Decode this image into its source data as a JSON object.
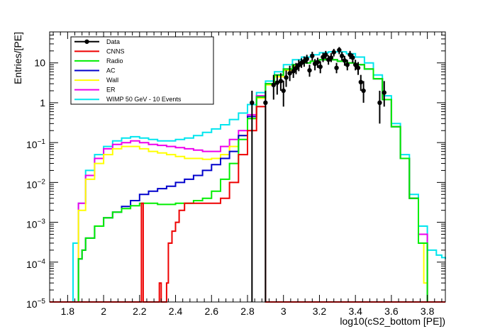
{
  "chart_data": {
    "type": "histogram",
    "xlabel": "log10(cS2_bottom [PE])",
    "ylabel": "Entries/[PE]",
    "xlim": [
      1.7,
      3.9
    ],
    "ylim": [
      1e-05,
      60
    ],
    "yscale": "log",
    "grid": false,
    "legend_position": "top-left",
    "x_ticks": [
      1.8,
      2,
      2.2,
      2.4,
      2.6,
      2.8,
      3,
      3.2,
      3.4,
      3.6,
      3.8
    ],
    "x_tick_labels": [
      "1.8",
      "2",
      "2.2",
      "2.4",
      "2.6",
      "2.8",
      "3",
      "3.2",
      "3.4",
      "3.6",
      "3.8"
    ],
    "y_ticks": [
      1e-05,
      0.0001,
      0.001,
      0.01,
      0.1,
      1,
      10
    ],
    "y_tick_labels": [
      {
        "base": "10",
        "exp": "−5"
      },
      {
        "base": "10",
        "exp": "−4"
      },
      {
        "base": "10",
        "exp": "−3"
      },
      {
        "base": "10",
        "exp": "−2"
      },
      {
        "base": "10",
        "exp": "−1"
      },
      {
        "base": "1",
        "exp": ""
      },
      {
        "base": "10",
        "exp": ""
      }
    ],
    "floor": 1e-05,
    "series": [
      {
        "name": "WIMP 50 GeV - 10 Events",
        "color": "#00e5ee",
        "points": [
          [
            1.7,
            1e-05
          ],
          [
            1.82,
            1e-05
          ],
          [
            1.83,
            0.0003
          ],
          [
            1.86,
            0.003
          ],
          [
            1.9,
            0.02
          ],
          [
            1.95,
            0.05
          ],
          [
            2.0,
            0.08
          ],
          [
            2.05,
            0.11
          ],
          [
            2.1,
            0.13
          ],
          [
            2.15,
            0.14
          ],
          [
            2.2,
            0.13
          ],
          [
            2.25,
            0.12
          ],
          [
            2.3,
            0.11
          ],
          [
            2.35,
            0.11
          ],
          [
            2.4,
            0.12
          ],
          [
            2.45,
            0.13
          ],
          [
            2.5,
            0.15
          ],
          [
            2.55,
            0.18
          ],
          [
            2.6,
            0.22
          ],
          [
            2.65,
            0.28
          ],
          [
            2.7,
            0.38
          ],
          [
            2.75,
            0.55
          ],
          [
            2.8,
            0.9
          ],
          [
            2.85,
            1.8
          ],
          [
            2.9,
            3.5
          ],
          [
            2.95,
            6
          ],
          [
            3.0,
            9
          ],
          [
            3.05,
            12
          ],
          [
            3.1,
            14
          ],
          [
            3.15,
            16
          ],
          [
            3.2,
            18
          ],
          [
            3.25,
            19
          ],
          [
            3.3,
            19
          ],
          [
            3.35,
            17
          ],
          [
            3.4,
            14
          ],
          [
            3.45,
            10
          ],
          [
            3.5,
            5
          ],
          [
            3.55,
            1.5
          ],
          [
            3.6,
            0.3
          ],
          [
            3.65,
            0.05
          ],
          [
            3.7,
            0.005
          ],
          [
            3.75,
            0.0008
          ],
          [
            3.8,
            0.0002
          ],
          [
            3.85,
            0.00015
          ],
          [
            3.88,
            0.00013
          ],
          [
            3.9,
            0.00012
          ]
        ]
      },
      {
        "name": "ER",
        "color": "#ee00ee",
        "points": [
          [
            1.83,
            1e-05
          ],
          [
            1.86,
            0.003
          ],
          [
            1.9,
            0.015
          ],
          [
            1.95,
            0.04
          ],
          [
            2.0,
            0.07
          ],
          [
            2.05,
            0.09
          ],
          [
            2.1,
            0.1
          ],
          [
            2.15,
            0.11
          ],
          [
            2.2,
            0.1
          ],
          [
            2.25,
            0.09
          ],
          [
            2.3,
            0.085
          ],
          [
            2.35,
            0.08
          ],
          [
            2.4,
            0.075
          ],
          [
            2.45,
            0.07
          ],
          [
            2.5,
            0.065
          ],
          [
            2.55,
            0.06
          ],
          [
            2.6,
            0.06
          ],
          [
            2.65,
            0.08
          ],
          [
            2.7,
            0.12
          ],
          [
            2.75,
            0.2
          ],
          [
            2.8,
            0.5
          ],
          [
            2.85,
            1.5
          ],
          [
            2.9,
            3
          ],
          [
            2.95,
            5
          ],
          [
            3.0,
            7
          ],
          [
            3.05,
            9
          ],
          [
            3.1,
            10
          ],
          [
            3.15,
            11
          ],
          [
            3.2,
            12
          ],
          [
            3.25,
            12
          ],
          [
            3.3,
            11
          ],
          [
            3.35,
            10
          ],
          [
            3.4,
            9
          ],
          [
            3.45,
            7
          ],
          [
            3.5,
            4
          ],
          [
            3.55,
            1.2
          ],
          [
            3.6,
            0.25
          ],
          [
            3.65,
            0.04
          ],
          [
            3.7,
            0.004
          ],
          [
            3.75,
            0.0005
          ],
          [
            3.8,
            1e-05
          ]
        ]
      },
      {
        "name": "Wall",
        "color": "#ffff00",
        "points": [
          [
            1.83,
            1e-05
          ],
          [
            1.86,
            0.002
          ],
          [
            1.9,
            0.012
          ],
          [
            1.95,
            0.03
          ],
          [
            2.0,
            0.05
          ],
          [
            2.05,
            0.07
          ],
          [
            2.1,
            0.08
          ],
          [
            2.15,
            0.08
          ],
          [
            2.2,
            0.07
          ],
          [
            2.25,
            0.06
          ],
          [
            2.3,
            0.055
          ],
          [
            2.35,
            0.05
          ],
          [
            2.4,
            0.045
          ],
          [
            2.45,
            0.04
          ],
          [
            2.5,
            0.04
          ],
          [
            2.55,
            0.038
          ],
          [
            2.6,
            0.04
          ],
          [
            2.65,
            0.05
          ],
          [
            2.7,
            0.08
          ],
          [
            2.75,
            0.15
          ],
          [
            2.8,
            0.4
          ],
          [
            2.85,
            1.3
          ],
          [
            2.9,
            2.8
          ],
          [
            2.95,
            4.5
          ],
          [
            3.0,
            6.5
          ],
          [
            3.05,
            8.5
          ],
          [
            3.1,
            10
          ],
          [
            3.15,
            11
          ],
          [
            3.2,
            12
          ],
          [
            3.25,
            12
          ],
          [
            3.3,
            11
          ],
          [
            3.35,
            10
          ],
          [
            3.4,
            9
          ],
          [
            3.45,
            7
          ],
          [
            3.5,
            4
          ],
          [
            3.55,
            1.2
          ],
          [
            3.6,
            0.25
          ],
          [
            3.65,
            0.04
          ],
          [
            3.7,
            0.004
          ],
          [
            3.75,
            0.0003
          ],
          [
            3.78,
            3e-05
          ],
          [
            3.8,
            1e-05
          ]
        ]
      },
      {
        "name": "AC",
        "color": "#0000cc",
        "points": [
          [
            1.84,
            1e-05
          ],
          [
            1.86,
            0.00012
          ],
          [
            1.88,
            0.0002
          ],
          [
            1.9,
            0.0004
          ],
          [
            1.95,
            0.0008
          ],
          [
            2.0,
            0.0013
          ],
          [
            2.05,
            0.0018
          ],
          [
            2.1,
            0.0025
          ],
          [
            2.15,
            0.0035
          ],
          [
            2.2,
            0.005
          ],
          [
            2.25,
            0.006
          ],
          [
            2.3,
            0.007
          ],
          [
            2.35,
            0.008
          ],
          [
            2.4,
            0.01
          ],
          [
            2.45,
            0.012
          ],
          [
            2.5,
            0.015
          ],
          [
            2.55,
            0.02
          ],
          [
            2.6,
            0.028
          ],
          [
            2.65,
            0.04
          ],
          [
            2.7,
            0.06
          ],
          [
            2.75,
            0.15
          ],
          [
            2.8,
            0.45
          ],
          [
            2.85,
            1.4
          ],
          [
            2.9,
            3
          ],
          [
            2.95,
            5
          ],
          [
            3.0,
            7
          ],
          [
            3.05,
            9
          ],
          [
            3.1,
            10
          ],
          [
            3.15,
            11
          ],
          [
            3.2,
            12
          ],
          [
            3.25,
            12
          ],
          [
            3.3,
            11
          ],
          [
            3.35,
            10
          ],
          [
            3.4,
            9
          ],
          [
            3.45,
            7
          ],
          [
            3.5,
            4
          ],
          [
            3.55,
            1.2
          ],
          [
            3.6,
            0.25
          ],
          [
            3.65,
            0.04
          ],
          [
            3.7,
            0.004
          ],
          [
            3.75,
            0.0003
          ],
          [
            3.8,
            1e-05
          ]
        ]
      },
      {
        "name": "Radio",
        "color": "#00ee00",
        "points": [
          [
            1.84,
            1e-05
          ],
          [
            1.86,
            0.00012
          ],
          [
            1.88,
            0.0002
          ],
          [
            1.9,
            0.0004
          ],
          [
            1.95,
            0.0008
          ],
          [
            2.0,
            0.0013
          ],
          [
            2.05,
            0.0018
          ],
          [
            2.1,
            0.0022
          ],
          [
            2.15,
            0.0026
          ],
          [
            2.2,
            0.003
          ],
          [
            2.25,
            0.003
          ],
          [
            2.3,
            0.0028
          ],
          [
            2.35,
            0.0028
          ],
          [
            2.4,
            0.003
          ],
          [
            2.45,
            0.003
          ],
          [
            2.5,
            0.0035
          ],
          [
            2.55,
            0.004
          ],
          [
            2.6,
            0.006
          ],
          [
            2.65,
            0.012
          ],
          [
            2.7,
            0.03
          ],
          [
            2.75,
            0.12
          ],
          [
            2.8,
            0.4
          ],
          [
            2.85,
            1.4
          ],
          [
            2.9,
            3
          ],
          [
            2.95,
            5
          ],
          [
            3.0,
            7
          ],
          [
            3.05,
            9
          ],
          [
            3.1,
            10
          ],
          [
            3.15,
            11
          ],
          [
            3.2,
            12
          ],
          [
            3.25,
            12
          ],
          [
            3.3,
            11
          ],
          [
            3.35,
            10
          ],
          [
            3.4,
            9
          ],
          [
            3.45,
            7
          ],
          [
            3.5,
            4
          ],
          [
            3.55,
            1.2
          ],
          [
            3.6,
            0.25
          ],
          [
            3.65,
            0.04
          ],
          [
            3.7,
            0.004
          ],
          [
            3.75,
            0.0003
          ],
          [
            3.8,
            1e-05
          ]
        ]
      },
      {
        "name": "CNNS",
        "color": "#ee0000",
        "points": [
          [
            1.7,
            1e-05
          ],
          [
            2.2,
            1e-05
          ],
          [
            2.21,
            0.003
          ],
          [
            2.22,
            1e-05
          ],
          [
            2.3,
            1e-05
          ],
          [
            2.31,
            3e-05
          ],
          [
            2.32,
            1e-05
          ],
          [
            2.34,
            1e-05
          ],
          [
            2.35,
            3e-05
          ],
          [
            2.36,
            0.0003
          ],
          [
            2.38,
            0.0006
          ],
          [
            2.4,
            0.001
          ],
          [
            2.42,
            0.002
          ],
          [
            2.45,
            0.003
          ],
          [
            2.5,
            0.003
          ],
          [
            2.55,
            0.003
          ],
          [
            2.6,
            0.003
          ],
          [
            2.65,
            0.004
          ],
          [
            2.7,
            0.01
          ],
          [
            2.75,
            0.05
          ],
          [
            2.8,
            0.2
          ],
          [
            2.85,
            0.8
          ],
          [
            2.9,
            1e-05
          ],
          [
            3.9,
            1e-05
          ]
        ]
      }
    ],
    "data": {
      "name": "Data",
      "color": "#000000",
      "points": [
        [
          2.825,
          1.0,
          1e-05,
          2.0
        ],
        [
          2.9,
          1.0,
          1e-05,
          2.0
        ],
        [
          2.945,
          2.8,
          1.2,
          5.0
        ],
        [
          2.965,
          3.2,
          1.6,
          5.0
        ],
        [
          2.985,
          3.5,
          2.0,
          5.5
        ],
        [
          3.0,
          2.0,
          0.8,
          3.6
        ],
        [
          3.015,
          4.3,
          2.5,
          6.5
        ],
        [
          3.035,
          5.5,
          3.5,
          8.5
        ],
        [
          3.055,
          6.2,
          4.2,
          9.0
        ],
        [
          3.07,
          7.4,
          5.2,
          10.0
        ],
        [
          3.085,
          8.8,
          6.2,
          12.0
        ],
        [
          3.1,
          10.0,
          7.5,
          13.0
        ],
        [
          3.115,
          11.0,
          8.0,
          14.5
        ],
        [
          3.13,
          12.6,
          9.5,
          16.0
        ],
        [
          3.145,
          6.5,
          4.5,
          9.0
        ],
        [
          3.16,
          15.0,
          11.5,
          19.0
        ],
        [
          3.175,
          9.5,
          6.5,
          12.5
        ],
        [
          3.19,
          10.5,
          7.5,
          13.5
        ],
        [
          3.205,
          8.0,
          5.5,
          11.0
        ],
        [
          3.22,
          14.0,
          10.5,
          18.0
        ],
        [
          3.235,
          16.0,
          12.5,
          20.0
        ],
        [
          3.25,
          12.0,
          9.0,
          15.5
        ],
        [
          3.265,
          13.5,
          10.5,
          17.5
        ],
        [
          3.28,
          18.5,
          14.5,
          22.5
        ],
        [
          3.295,
          7.5,
          5.5,
          10.0
        ],
        [
          3.31,
          21.0,
          16.5,
          25.0
        ],
        [
          3.325,
          15.0,
          11.5,
          19.0
        ],
        [
          3.34,
          11.5,
          8.5,
          15.0
        ],
        [
          3.355,
          9.0,
          6.5,
          12.0
        ],
        [
          3.37,
          16.0,
          12.5,
          20.0
        ],
        [
          3.385,
          13.5,
          10.0,
          17.0
        ],
        [
          3.4,
          9.0,
          6.5,
          12.0
        ],
        [
          3.415,
          7.5,
          5.0,
          10.5
        ],
        [
          3.43,
          3.3,
          2.0,
          5.0
        ],
        [
          3.445,
          2.0,
          1.0,
          3.5
        ],
        [
          3.535,
          1.0,
          0.3,
          2.0
        ],
        [
          3.56,
          1.8,
          0.8,
          3.5
        ]
      ]
    }
  }
}
